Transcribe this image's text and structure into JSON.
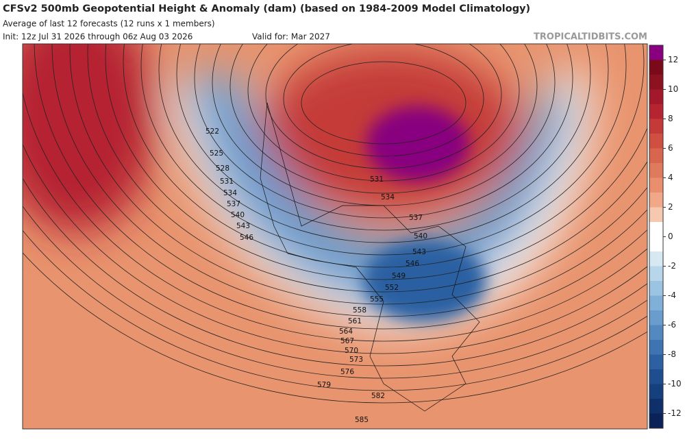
{
  "header": {
    "title": "CFSv2 500mb Geopotential Height & Anomaly (dam) (based on 1984-2009 Model Climatology)",
    "subtitle": "Average of last 12 forecasts (12 runs x 1 members)",
    "init": "Init: 12z Jul 31 2026 through 06z Aug 03 2026",
    "valid": "Valid for: Mar 2027",
    "source": "TROPICALTIDBITS.COM"
  },
  "colorbar": {
    "lim": [
      -13,
      13
    ],
    "ticks": [
      12,
      10,
      8,
      6,
      4,
      2,
      0,
      -2,
      -4,
      -6,
      -8,
      -10,
      -12
    ],
    "colors": [
      "#88007f",
      "#7a0a1a",
      "#8c1220",
      "#a3182a",
      "#b52430",
      "#c43a38",
      "#cf5040",
      "#d8664e",
      "#e07a5c",
      "#e98f6e",
      "#f0a888",
      "#f7c8b0",
      "#ffffff",
      "#ffffff",
      "#d6e8f2",
      "#b8d6ea",
      "#9cc4e2",
      "#80b0d8",
      "#6a9ccd",
      "#5488c0",
      "#3e74b2",
      "#2c60a2",
      "#1f4e90",
      "#163f7e",
      "#0f2f6a",
      "#0a2258"
    ]
  },
  "contour_labels": {
    "west": [
      522,
      525,
      528,
      531,
      534,
      537,
      540,
      543,
      546
    ],
    "east": [
      531,
      534,
      537,
      540,
      543,
      546,
      549,
      552,
      555,
      558,
      561,
      564,
      567,
      570,
      573,
      576,
      579,
      582,
      585
    ]
  }
}
